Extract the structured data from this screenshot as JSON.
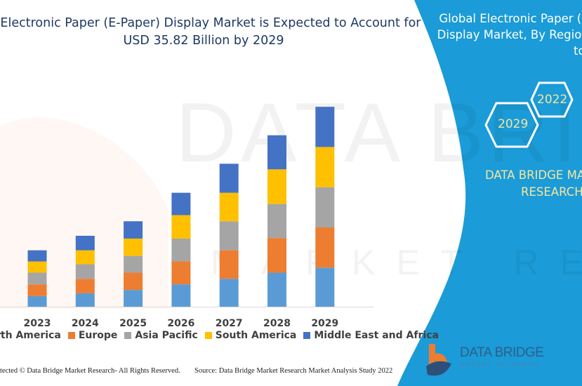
{
  "header": {
    "title_line1": "l Electronic Paper (E-Paper) Display Market is Expected to Account for",
    "title_line2": "USD 35.82 Billion by 2029"
  },
  "side_panel": {
    "title_line1": "Global Electronic Paper (E-",
    "title_line2": "Display Market, By Regions",
    "title_line3": "to",
    "hex_2022": "2022",
    "hex_2029": "2029",
    "brand_line1": "DATA BRIDGE MA",
    "brand_line2": "RESEARCH",
    "color": "#1b9bd7"
  },
  "watermark": {
    "text1": "DATA BRIDGE",
    "text2": "MARKET RESEARCH"
  },
  "footer": {
    "copyright": "tected © Data Bridge Market Research- All Rights Reserved.",
    "source": "Source: Data Bridge Market Research Market Analysis Study 2022"
  },
  "logo": {
    "name": "DATA BRIDGE",
    "sub": "MARKET RESEARCH"
  },
  "chart_data": {
    "type": "bar",
    "stacked": true,
    "title": "Electronic Paper (E-Paper) Display Market is Expected to Account for USD 35.82 Billion by 2029",
    "xlabel": "",
    "ylabel": "",
    "categories": [
      "2023",
      "2024",
      "2025",
      "2026",
      "2027",
      "2028",
      "2029"
    ],
    "legend_position": "bottom",
    "grid": false,
    "ylim": [
      0,
      36
    ],
    "series": [
      {
        "name": "North America",
        "color": "#5b9bd5",
        "values": [
          1.9,
          2.4,
          3.0,
          4.0,
          5.0,
          6.1,
          7.0
        ]
      },
      {
        "name": "Europe",
        "color": "#ed7d31",
        "values": [
          2.1,
          2.6,
          3.1,
          4.1,
          5.1,
          6.2,
          7.2
        ]
      },
      {
        "name": "Asia Pacific",
        "color": "#a5a5a5",
        "values": [
          2.1,
          2.6,
          3.0,
          4.1,
          5.2,
          6.1,
          7.2
        ]
      },
      {
        "name": "South America",
        "color": "#ffc000",
        "values": [
          2.0,
          2.5,
          3.1,
          4.2,
          5.1,
          6.2,
          7.2
        ]
      },
      {
        "name": "Middle East and Africa",
        "color": "#4472c4",
        "values": [
          2.0,
          2.6,
          3.1,
          4.0,
          5.2,
          6.1,
          7.2
        ]
      }
    ]
  }
}
